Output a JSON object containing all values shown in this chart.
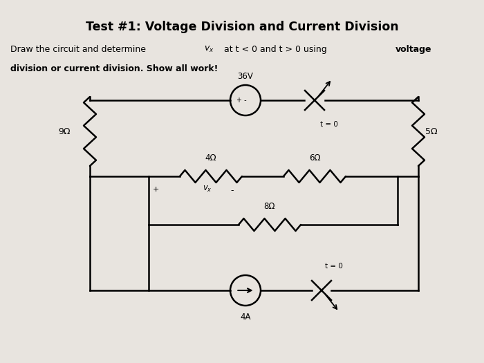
{
  "title": "Test #1: Voltage Division and Current Division",
  "background_color": "#e8e4df",
  "text_color": "#000000",
  "line_color": "#000000",
  "line_width": 1.8,
  "resistor_9": "9Ω",
  "resistor_4": "4Ω",
  "resistor_6": "6Ω",
  "resistor_8": "8Ω",
  "resistor_5": "5Ω",
  "voltage_source": "36V",
  "current_source": "4A",
  "switch_label_top": "t = 0",
  "switch_label_bot": "t = 0",
  "plus_vs": "+ -",
  "plus_vx": "+",
  "minus_vx": "-"
}
